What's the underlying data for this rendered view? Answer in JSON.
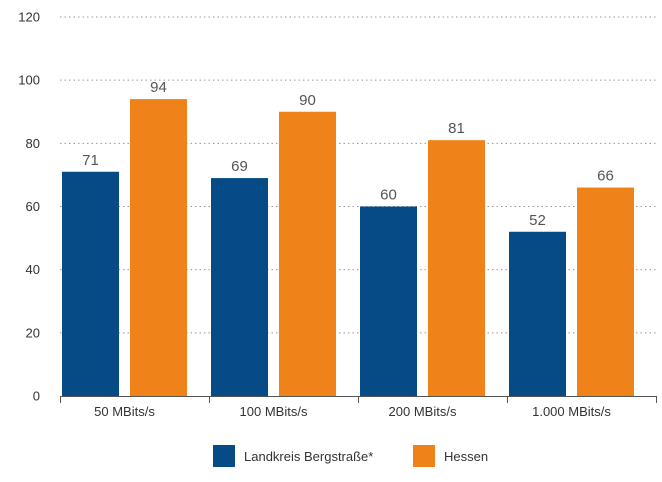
{
  "chart_data": {
    "type": "bar",
    "title": "",
    "xlabel": "",
    "ylabel": "",
    "ylim": [
      0,
      120
    ],
    "yticks": [
      0,
      20,
      40,
      60,
      80,
      100,
      120
    ],
    "categories": [
      "50 MBits/s",
      "100 MBits/s",
      "200 MBits/s",
      "1.000 MBits/s"
    ],
    "series": [
      {
        "name": "Landkreis Bergstraße*",
        "values": [
          71,
          69,
          60,
          52
        ],
        "color": "#064a86"
      },
      {
        "name": "Hessen",
        "values": [
          94,
          90,
          81,
          66
        ],
        "color": "#ef8219"
      }
    ],
    "grid": true,
    "legend_position": "bottom-center"
  }
}
